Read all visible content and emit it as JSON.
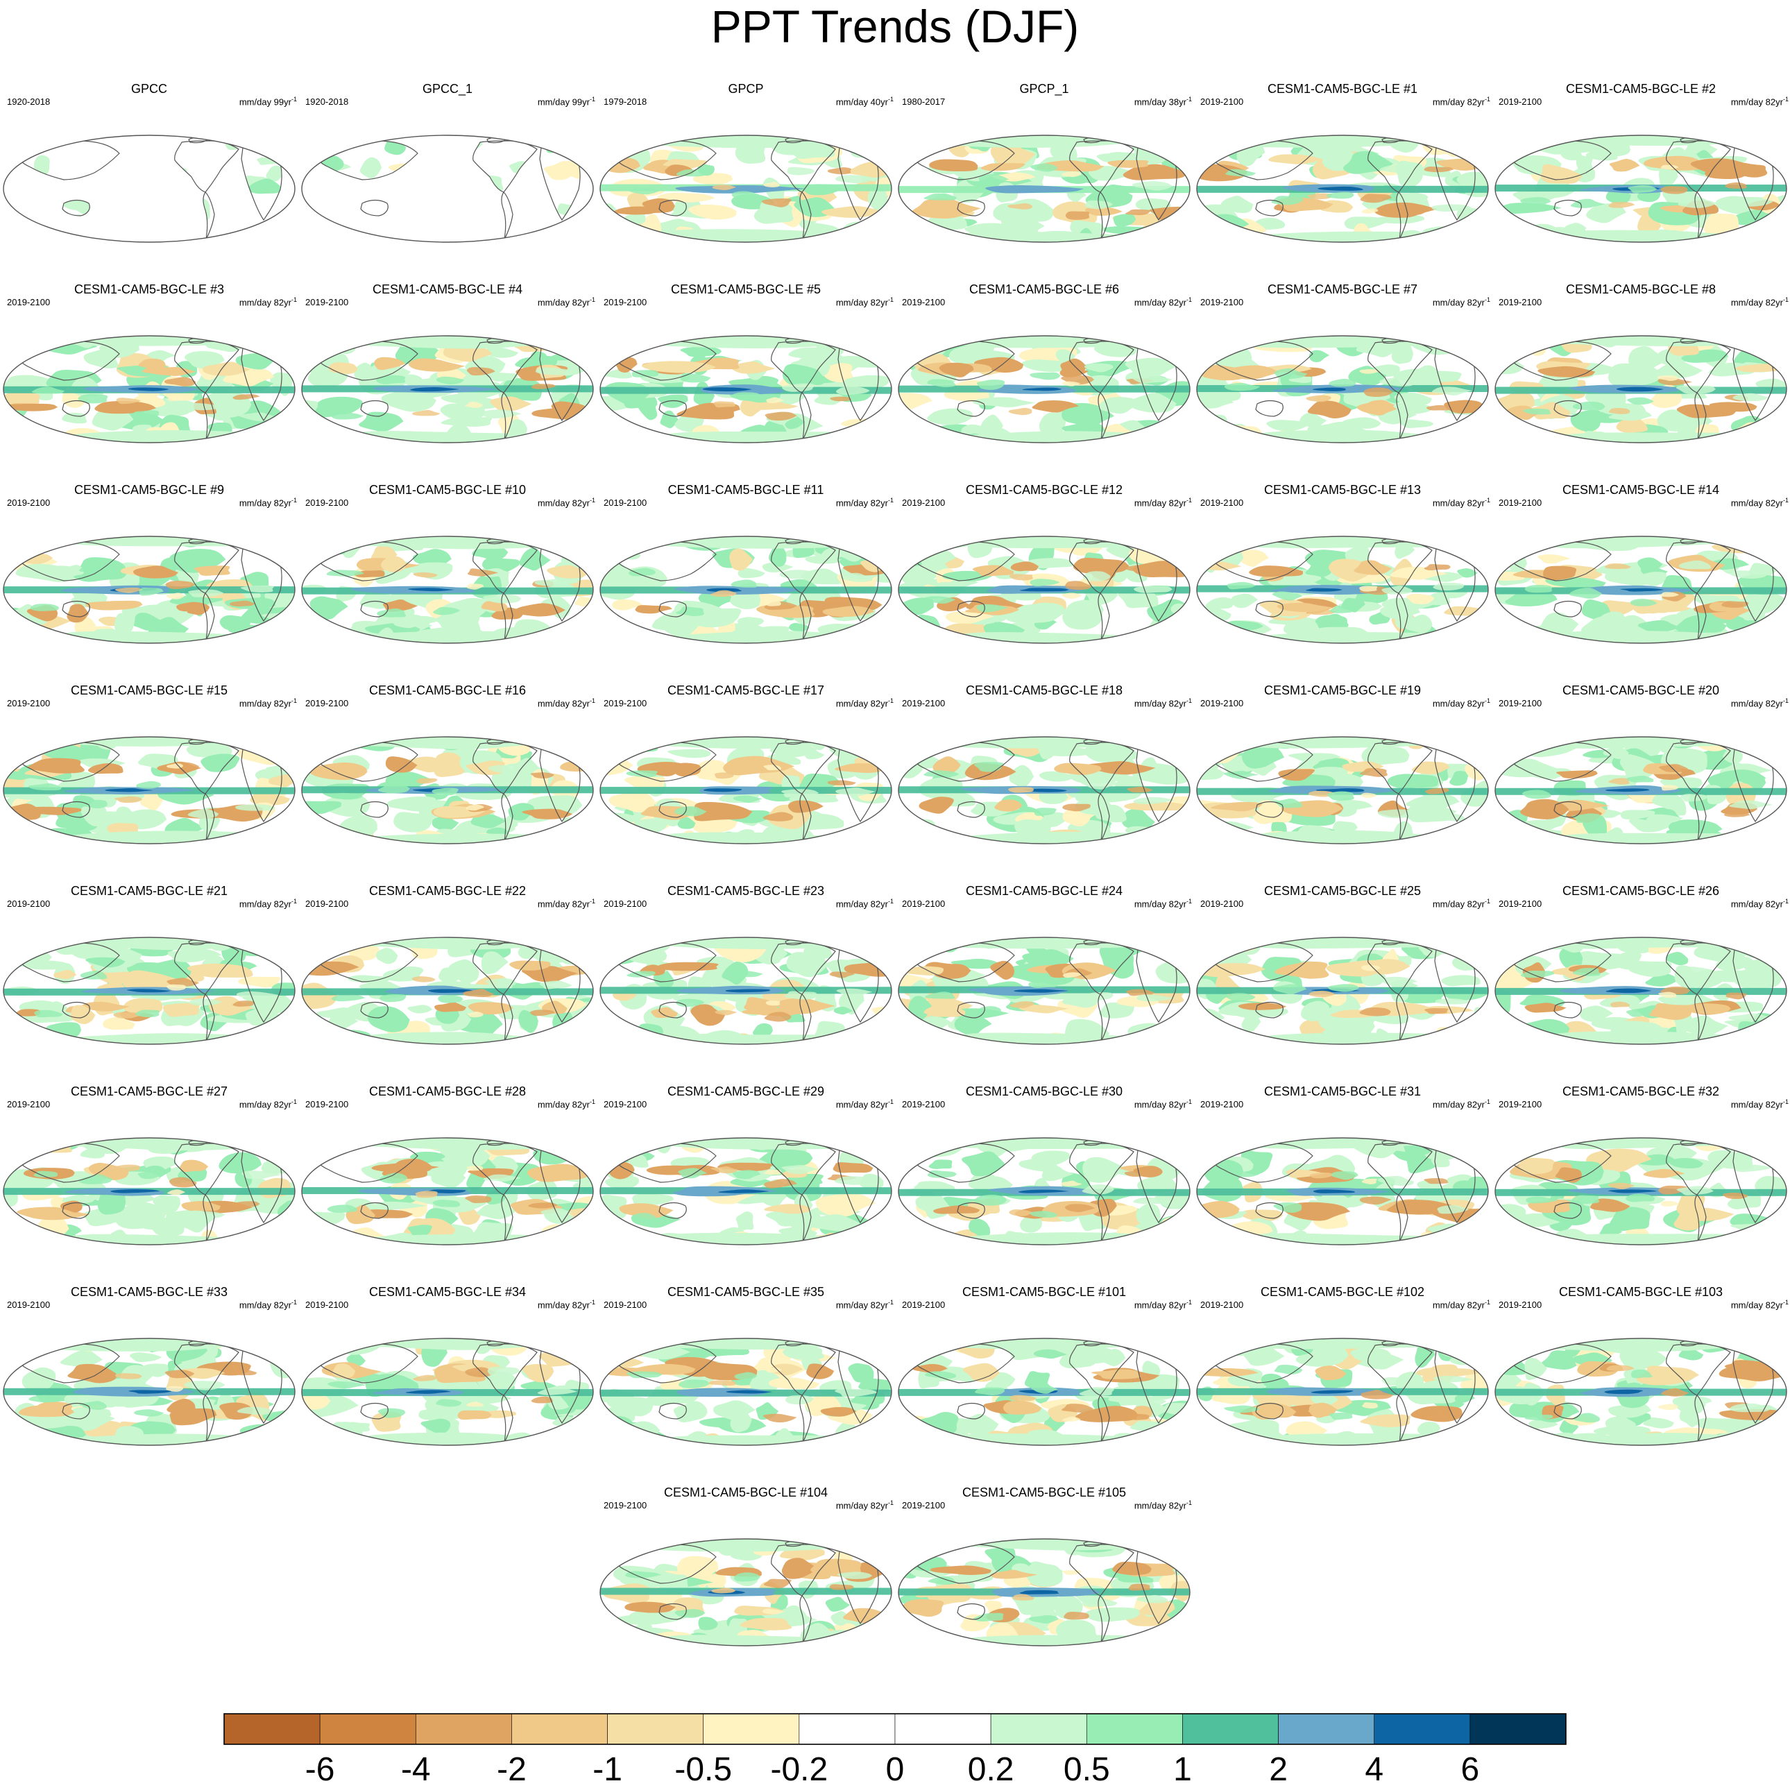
{
  "figure": {
    "title": "PPT Trends (DJF)"
  },
  "colors": {
    "land_outline": "#555555",
    "map_border": "#555555"
  },
  "chart_data": {
    "type": "heatmap",
    "title": "PPT Trends (DJF)",
    "layout": "6-column panel grid, final row of 2 panels centered; shared horizontal colorbar at bottom",
    "projection": "Robinson-like world map centered on the Pacific",
    "panels": [
      {
        "name": "GPCC",
        "period": "1920-2018",
        "units": "mm/day 99yr",
        "units_sup": "-1",
        "coverage": "land"
      },
      {
        "name": "GPCC_1",
        "period": "1920-2018",
        "units": "mm/day 99yr",
        "units_sup": "-1",
        "coverage": "land"
      },
      {
        "name": "GPCP",
        "period": "1979-2018",
        "units": "mm/day 40yr",
        "units_sup": "-1",
        "coverage": "global"
      },
      {
        "name": "GPCP_1",
        "period": "1980-2017",
        "units": "mm/day 38yr",
        "units_sup": "-1",
        "coverage": "global"
      },
      {
        "name": "CESM1-CAM5-BGC-LE #1",
        "period": "2019-2100",
        "units": "mm/day 82yr",
        "units_sup": "-1",
        "coverage": "global"
      },
      {
        "name": "CESM1-CAM5-BGC-LE #2",
        "period": "2019-2100",
        "units": "mm/day 82yr",
        "units_sup": "-1",
        "coverage": "global"
      },
      {
        "name": "CESM1-CAM5-BGC-LE #3",
        "period": "2019-2100",
        "units": "mm/day 82yr",
        "units_sup": "-1",
        "coverage": "global"
      },
      {
        "name": "CESM1-CAM5-BGC-LE #4",
        "period": "2019-2100",
        "units": "mm/day 82yr",
        "units_sup": "-1",
        "coverage": "global"
      },
      {
        "name": "CESM1-CAM5-BGC-LE #5",
        "period": "2019-2100",
        "units": "mm/day 82yr",
        "units_sup": "-1",
        "coverage": "global"
      },
      {
        "name": "CESM1-CAM5-BGC-LE #6",
        "period": "2019-2100",
        "units": "mm/day 82yr",
        "units_sup": "-1",
        "coverage": "global"
      },
      {
        "name": "CESM1-CAM5-BGC-LE #7",
        "period": "2019-2100",
        "units": "mm/day 82yr",
        "units_sup": "-1",
        "coverage": "global"
      },
      {
        "name": "CESM1-CAM5-BGC-LE #8",
        "period": "2019-2100",
        "units": "mm/day 82yr",
        "units_sup": "-1",
        "coverage": "global"
      },
      {
        "name": "CESM1-CAM5-BGC-LE #9",
        "period": "2019-2100",
        "units": "mm/day 82yr",
        "units_sup": "-1",
        "coverage": "global"
      },
      {
        "name": "CESM1-CAM5-BGC-LE #10",
        "period": "2019-2100",
        "units": "mm/day 82yr",
        "units_sup": "-1",
        "coverage": "global"
      },
      {
        "name": "CESM1-CAM5-BGC-LE #11",
        "period": "2019-2100",
        "units": "mm/day 82yr",
        "units_sup": "-1",
        "coverage": "global"
      },
      {
        "name": "CESM1-CAM5-BGC-LE #12",
        "period": "2019-2100",
        "units": "mm/day 82yr",
        "units_sup": "-1",
        "coverage": "global"
      },
      {
        "name": "CESM1-CAM5-BGC-LE #13",
        "period": "2019-2100",
        "units": "mm/day 82yr",
        "units_sup": "-1",
        "coverage": "global"
      },
      {
        "name": "CESM1-CAM5-BGC-LE #14",
        "period": "2019-2100",
        "units": "mm/day 82yr",
        "units_sup": "-1",
        "coverage": "global"
      },
      {
        "name": "CESM1-CAM5-BGC-LE #15",
        "period": "2019-2100",
        "units": "mm/day 82yr",
        "units_sup": "-1",
        "coverage": "global"
      },
      {
        "name": "CESM1-CAM5-BGC-LE #16",
        "period": "2019-2100",
        "units": "mm/day 82yr",
        "units_sup": "-1",
        "coverage": "global"
      },
      {
        "name": "CESM1-CAM5-BGC-LE #17",
        "period": "2019-2100",
        "units": "mm/day 82yr",
        "units_sup": "-1",
        "coverage": "global"
      },
      {
        "name": "CESM1-CAM5-BGC-LE #18",
        "period": "2019-2100",
        "units": "mm/day 82yr",
        "units_sup": "-1",
        "coverage": "global"
      },
      {
        "name": "CESM1-CAM5-BGC-LE #19",
        "period": "2019-2100",
        "units": "mm/day 82yr",
        "units_sup": "-1",
        "coverage": "global"
      },
      {
        "name": "CESM1-CAM5-BGC-LE #20",
        "period": "2019-2100",
        "units": "mm/day 82yr",
        "units_sup": "-1",
        "coverage": "global"
      },
      {
        "name": "CESM1-CAM5-BGC-LE #21",
        "period": "2019-2100",
        "units": "mm/day 82yr",
        "units_sup": "-1",
        "coverage": "global"
      },
      {
        "name": "CESM1-CAM5-BGC-LE #22",
        "period": "2019-2100",
        "units": "mm/day 82yr",
        "units_sup": "-1",
        "coverage": "global"
      },
      {
        "name": "CESM1-CAM5-BGC-LE #23",
        "period": "2019-2100",
        "units": "mm/day 82yr",
        "units_sup": "-1",
        "coverage": "global"
      },
      {
        "name": "CESM1-CAM5-BGC-LE #24",
        "period": "2019-2100",
        "units": "mm/day 82yr",
        "units_sup": "-1",
        "coverage": "global"
      },
      {
        "name": "CESM1-CAM5-BGC-LE #25",
        "period": "2019-2100",
        "units": "mm/day 82yr",
        "units_sup": "-1",
        "coverage": "global"
      },
      {
        "name": "CESM1-CAM5-BGC-LE #26",
        "period": "2019-2100",
        "units": "mm/day 82yr",
        "units_sup": "-1",
        "coverage": "global"
      },
      {
        "name": "CESM1-CAM5-BGC-LE #27",
        "period": "2019-2100",
        "units": "mm/day 82yr",
        "units_sup": "-1",
        "coverage": "global"
      },
      {
        "name": "CESM1-CAM5-BGC-LE #28",
        "period": "2019-2100",
        "units": "mm/day 82yr",
        "units_sup": "-1",
        "coverage": "global"
      },
      {
        "name": "CESM1-CAM5-BGC-LE #29",
        "period": "2019-2100",
        "units": "mm/day 82yr",
        "units_sup": "-1",
        "coverage": "global"
      },
      {
        "name": "CESM1-CAM5-BGC-LE #30",
        "period": "2019-2100",
        "units": "mm/day 82yr",
        "units_sup": "-1",
        "coverage": "global"
      },
      {
        "name": "CESM1-CAM5-BGC-LE #31",
        "period": "2019-2100",
        "units": "mm/day 82yr",
        "units_sup": "-1",
        "coverage": "global"
      },
      {
        "name": "CESM1-CAM5-BGC-LE #32",
        "period": "2019-2100",
        "units": "mm/day 82yr",
        "units_sup": "-1",
        "coverage": "global"
      },
      {
        "name": "CESM1-CAM5-BGC-LE #33",
        "period": "2019-2100",
        "units": "mm/day 82yr",
        "units_sup": "-1",
        "coverage": "global"
      },
      {
        "name": "CESM1-CAM5-BGC-LE #34",
        "period": "2019-2100",
        "units": "mm/day 82yr",
        "units_sup": "-1",
        "coverage": "global"
      },
      {
        "name": "CESM1-CAM5-BGC-LE #35",
        "period": "2019-2100",
        "units": "mm/day 82yr",
        "units_sup": "-1",
        "coverage": "global"
      },
      {
        "name": "CESM1-CAM5-BGC-LE #101",
        "period": "2019-2100",
        "units": "mm/day 82yr",
        "units_sup": "-1",
        "coverage": "global"
      },
      {
        "name": "CESM1-CAM5-BGC-LE #102",
        "period": "2019-2100",
        "units": "mm/day 82yr",
        "units_sup": "-1",
        "coverage": "global"
      },
      {
        "name": "CESM1-CAM5-BGC-LE #103",
        "period": "2019-2100",
        "units": "mm/day 82yr",
        "units_sup": "-1",
        "coverage": "global"
      },
      {
        "name": "CESM1-CAM5-BGC-LE #104",
        "period": "2019-2100",
        "units": "mm/day 82yr",
        "units_sup": "-1",
        "coverage": "global"
      },
      {
        "name": "CESM1-CAM5-BGC-LE #105",
        "period": "2019-2100",
        "units": "mm/day 82yr",
        "units_sup": "-1",
        "coverage": "global"
      }
    ],
    "colorbar": {
      "orientation": "horizontal",
      "labels": [
        "-6",
        "-4",
        "-2",
        "-1",
        "-0.5",
        "-0.2",
        "0",
        "0.2",
        "0.5",
        "1",
        "2",
        "4",
        "6"
      ],
      "colors": [
        "#b5652a",
        "#cf843f",
        "#e0a462",
        "#f0c887",
        "#f6dfa4",
        "#fff3c2",
        "#ffffff",
        "#ffffff",
        "#c9f7cf",
        "#97edb4",
        "#4fbf9c",
        "#6aa8cb",
        "#0d66a3",
        "#013658"
      ]
    }
  }
}
